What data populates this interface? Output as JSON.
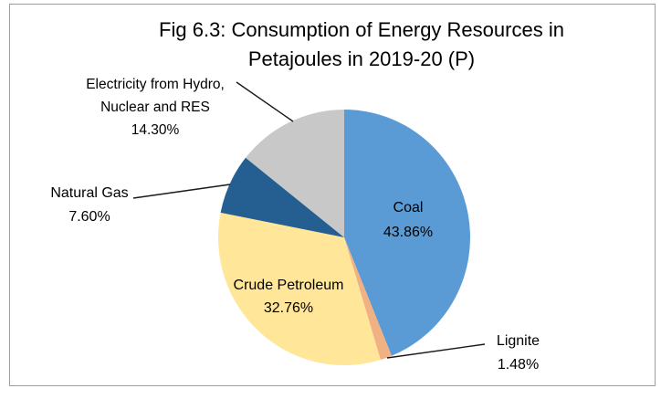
{
  "figure": {
    "title_lines": [
      "Fig 6.3: Consumption of Energy Resources in",
      "Petajoules in 2019-20 (P)"
    ],
    "border_color": "#9c9c9c",
    "background_color": "#ffffff"
  },
  "chart_data": {
    "type": "pie",
    "title": "Fig 6.3: Consumption of Energy Resources in Petajoules in 2019-20 (P)",
    "unit": "percent",
    "start_angle_deg": 0,
    "direction": "clockwise",
    "legend": "none",
    "slices": [
      {
        "label": "Coal",
        "value": 43.86,
        "pct_label": "43.86%",
        "color": "#5B9BD5",
        "label_placement": "inside"
      },
      {
        "label": "Lignite",
        "value": 1.48,
        "pct_label": "1.48%",
        "color": "#F2B183",
        "label_placement": "outside-right-leader"
      },
      {
        "label": "Crude Petroleum",
        "value": 32.76,
        "pct_label": "32.76%",
        "color": "#FFE699",
        "label_placement": "inside"
      },
      {
        "label": "Natural Gas",
        "value": 7.6,
        "pct_label": "7.60%",
        "color": "#255E91",
        "label_placement": "outside-left-leader"
      },
      {
        "label": "Electricity from Hydro, Nuclear and RES",
        "value": 14.3,
        "pct_label": "14.30%",
        "color": "#C8C8C8",
        "label_placement": "outside-left-leader"
      }
    ]
  }
}
